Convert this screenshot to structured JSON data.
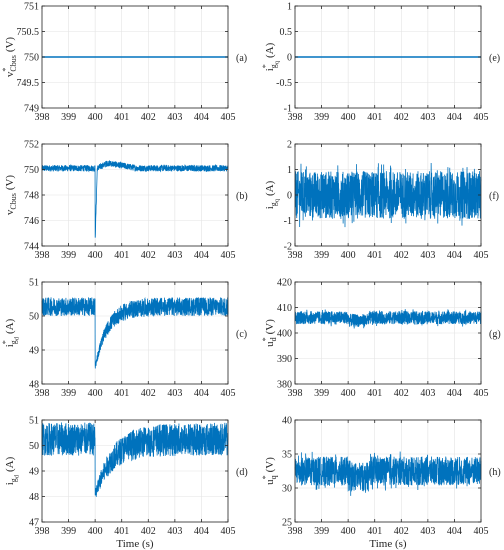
{
  "colors": {
    "series": "#0072BD",
    "grid": "#e3e3e3",
    "axis": "#262626"
  },
  "chart_data": [
    {
      "type": "line",
      "tag": "(a)",
      "ylabel": {
        "main": "v",
        "sup": "*",
        "sub": "Cbus",
        "unit": "(V)"
      },
      "xlabel": "",
      "xlim": [
        398,
        405
      ],
      "ylim": [
        749,
        751
      ],
      "xticks": [
        "398",
        "399",
        "400",
        "401",
        "402",
        "403",
        "404",
        "405"
      ],
      "yticks": [
        "749",
        "749.5",
        "750",
        "750.5",
        "751"
      ],
      "grid": true,
      "style": "flat",
      "base": 750
    },
    {
      "type": "line",
      "tag": "(e)",
      "ylabel": {
        "main": "i",
        "sup": "*",
        "sub": "g",
        "subsub": "q",
        "unit": "(A)"
      },
      "xlabel": "",
      "xlim": [
        398,
        405
      ],
      "ylim": [
        -1,
        1
      ],
      "xticks": [
        "398",
        "399",
        "400",
        "401",
        "402",
        "403",
        "404",
        "405"
      ],
      "yticks": [
        "-1",
        "-0.5",
        "0",
        "0.5",
        "1"
      ],
      "grid": true,
      "style": "flat",
      "base": 0
    },
    {
      "type": "line",
      "tag": "(b)",
      "ylabel": {
        "main": "v",
        "sub": "Cbus",
        "unit": "(V)"
      },
      "xlabel": "",
      "xlim": [
        398,
        405
      ],
      "ylim": [
        744,
        752
      ],
      "xticks": [
        "398",
        "399",
        "400",
        "401",
        "402",
        "403",
        "404",
        "405"
      ],
      "yticks": [
        "744",
        "746",
        "748",
        "750",
        "752"
      ],
      "grid": true,
      "style": "transient",
      "base": 750.1,
      "noise": 0.25,
      "step_time": 400,
      "dip_min": 744.4,
      "dip_duration": 0.08,
      "overshoot": 750.5,
      "overshoot_time": 400.4,
      "settle_time": 401.5
    },
    {
      "type": "line",
      "tag": "(f)",
      "ylabel": {
        "main": "i",
        "sub": "g",
        "subsub": "q",
        "unit": "(A)"
      },
      "xlabel": "",
      "xlim": [
        398,
        405
      ],
      "ylim": [
        -2,
        2
      ],
      "xticks": [
        "398",
        "399",
        "400",
        "401",
        "402",
        "403",
        "404",
        "405"
      ],
      "yticks": [
        "-2",
        "-1",
        "0",
        "1",
        "2"
      ],
      "grid": true,
      "style": "band",
      "base": 0,
      "band_low": -1.1,
      "band_high": 1.1
    },
    {
      "type": "line",
      "tag": "(c)",
      "ylabel": {
        "main": "i",
        "sup": "*",
        "sub": "g",
        "subsub": "d",
        "unit": "(A)"
      },
      "xlabel": "",
      "xlim": [
        398,
        405
      ],
      "ylim": [
        48,
        51
      ],
      "xticks": [
        "398",
        "399",
        "400",
        "401",
        "402",
        "403",
        "404",
        "405"
      ],
      "yticks": [
        "48",
        "49",
        "50",
        "51"
      ],
      "grid": true,
      "style": "recover",
      "band_low": 50.0,
      "band_high": 50.55,
      "step_time": 400,
      "dip_min": 48.4,
      "recovery_tau": 0.45
    },
    {
      "type": "line",
      "tag": "(g)",
      "ylabel": {
        "main": "u",
        "sup": "*",
        "sub": "d",
        "unit": "(V)"
      },
      "xlabel": "",
      "xlim": [
        398,
        405
      ],
      "ylim": [
        380,
        420
      ],
      "xticks": [
        "398",
        "399",
        "400",
        "401",
        "402",
        "403",
        "404",
        "405"
      ],
      "yticks": [
        "380",
        "390",
        "400",
        "410",
        "420"
      ],
      "grid": true,
      "style": "band",
      "base": 406,
      "band_low": 403,
      "band_high": 409
    },
    {
      "type": "line",
      "tag": "(d)",
      "ylabel": {
        "main": "i",
        "sub": "g",
        "subsub": "d",
        "unit": "(A)"
      },
      "xlabel": "Time (s)",
      "xlim": [
        398,
        405
      ],
      "ylim": [
        47,
        51
      ],
      "xticks": [
        "398",
        "399",
        "400",
        "401",
        "402",
        "403",
        "404",
        "405"
      ],
      "yticks": [
        "47",
        "48",
        "49",
        "50",
        "51"
      ],
      "grid": true,
      "style": "recover",
      "band_low": 49.6,
      "band_high": 50.9,
      "step_time": 400,
      "dip_min": 47.8,
      "recovery_tau": 0.6
    },
    {
      "type": "line",
      "tag": "(h)",
      "ylabel": {
        "main": "u",
        "sup": "*",
        "sub": "q",
        "unit": "(V)"
      },
      "xlabel": "Time (s)",
      "xlim": [
        398,
        405
      ],
      "ylim": [
        25,
        40
      ],
      "xticks": [
        "398",
        "399",
        "400",
        "401",
        "402",
        "403",
        "404",
        "405"
      ],
      "yticks": [
        "25",
        "30",
        "35",
        "40"
      ],
      "grid": true,
      "style": "band",
      "base": 32.5,
      "band_low": 30,
      "band_high": 35
    }
  ]
}
